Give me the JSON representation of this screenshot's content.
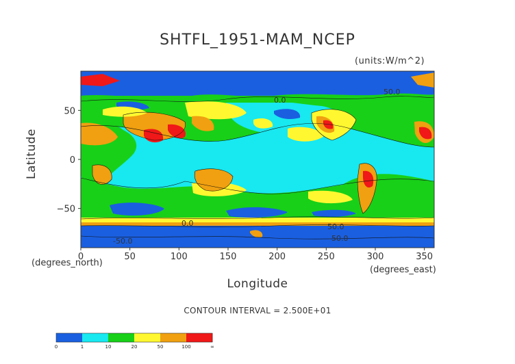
{
  "chart_data": {
    "type": "heatmap",
    "title": "SHTFL_1951-MAM_NCEP",
    "units": "(units:W/m^2)",
    "xlabel": "Longitude",
    "ylabel": "Latitude",
    "x_unit": "(degrees_east)",
    "y_unit": "(degrees_north)",
    "xlim": [
      0,
      360
    ],
    "ylim": [
      -90,
      90
    ],
    "x_ticks": [
      "0",
      "50",
      "100",
      "150",
      "200",
      "250",
      "300",
      "350"
    ],
    "x_tick_values": [
      0,
      50,
      100,
      150,
      200,
      250,
      300,
      350
    ],
    "y_ticks": [
      "50",
      "0",
      "−50"
    ],
    "y_tick_values": [
      50,
      0,
      -50
    ],
    "contour_interval": "CONTOUR INTERVAL = 2.500E+01",
    "contour_labels": [
      "0.0",
      "0.0",
      "50.0",
      "-50.0",
      "-50.0",
      "50.0"
    ],
    "colorbar": {
      "bins": [
        {
          "color": "#1a5fe0"
        },
        {
          "color": "#1a5fe0"
        },
        {
          "color": "#18e8f0"
        },
        {
          "color": "#18e8f0"
        },
        {
          "color": "#18d018"
        },
        {
          "color": "#18d018"
        },
        {
          "color": "#fff830"
        },
        {
          "color": "#fff830"
        },
        {
          "color": "#f0a010"
        },
        {
          "color": "#f0a010"
        },
        {
          "color": "#f01818"
        },
        {
          "color": "#f01818"
        }
      ],
      "labels": [
        "0",
        "1",
        "10",
        "20",
        "50",
        "100",
        "∞"
      ]
    },
    "colors": {
      "ocean_low": "#1a5fe0",
      "cyan": "#18e8f0",
      "green": "#18d018",
      "yellow": "#fff830",
      "orange": "#f0a010",
      "red": "#f01818",
      "contour": "#111111"
    }
  }
}
